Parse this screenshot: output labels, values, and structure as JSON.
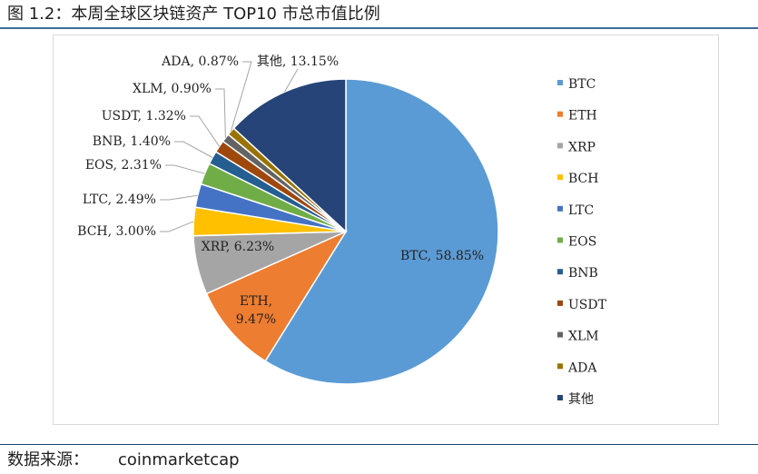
{
  "figure": {
    "title": "图 1.2：本周全球区块链资产 TOP10 市总市值比例",
    "source_label": "数据来源：",
    "source_value": "coinmarketcap"
  },
  "chart_data": {
    "type": "pie",
    "title": "",
    "legend_position": "right",
    "slices": [
      {
        "name": "BTC",
        "value": 58.85,
        "label": "BTC, 58.85%",
        "color": "#5b9bd5"
      },
      {
        "name": "ETH",
        "value": 9.47,
        "label": "ETH, 9.47%",
        "color": "#ed7d31"
      },
      {
        "name": "XRP",
        "value": 6.23,
        "label": "XRP, 6.23%",
        "color": "#a5a5a5"
      },
      {
        "name": "BCH",
        "value": 3.0,
        "label": "BCH, 3.00%",
        "color": "#ffc000"
      },
      {
        "name": "LTC",
        "value": 2.49,
        "label": "LTC, 2.49%",
        "color": "#4472c4"
      },
      {
        "name": "EOS",
        "value": 2.31,
        "label": "EOS, 2.31%",
        "color": "#70ad47"
      },
      {
        "name": "BNB",
        "value": 1.4,
        "label": "BNB, 1.40%",
        "color": "#255e91"
      },
      {
        "name": "USDT",
        "value": 1.32,
        "label": "USDT, 1.32%",
        "color": "#9e480e"
      },
      {
        "name": "XLM",
        "value": 0.9,
        "label": "XLM, 0.90%",
        "color": "#636363"
      },
      {
        "name": "ADA",
        "value": 0.87,
        "label": "ADA, 0.87%",
        "color": "#997300"
      },
      {
        "name": "其他",
        "value": 13.15,
        "label": "其他, 13.15%",
        "color": "#264478"
      }
    ]
  }
}
